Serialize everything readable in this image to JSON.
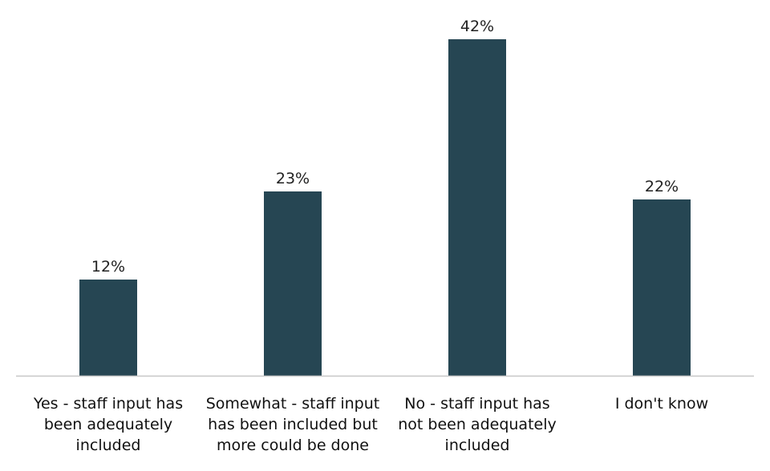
{
  "chart_data": {
    "type": "bar",
    "categories": [
      [
        "Yes - staff input has",
        "been adequately",
        "included"
      ],
      [
        "Somewhat - staff input",
        "has been included but",
        "more could be done"
      ],
      [
        "No - staff input has",
        "not been adequately",
        "included"
      ],
      [
        "I don't know"
      ]
    ],
    "values": [
      12,
      23,
      42,
      22
    ],
    "value_labels": [
      "12%",
      "23%",
      "42%",
      "22%"
    ],
    "title": "",
    "xlabel": "",
    "ylabel": "",
    "ylim": [
      0,
      42
    ],
    "grid": false,
    "legend": "none",
    "colors": {
      "bar": "#264653",
      "axis": "#c8c8c8"
    }
  }
}
